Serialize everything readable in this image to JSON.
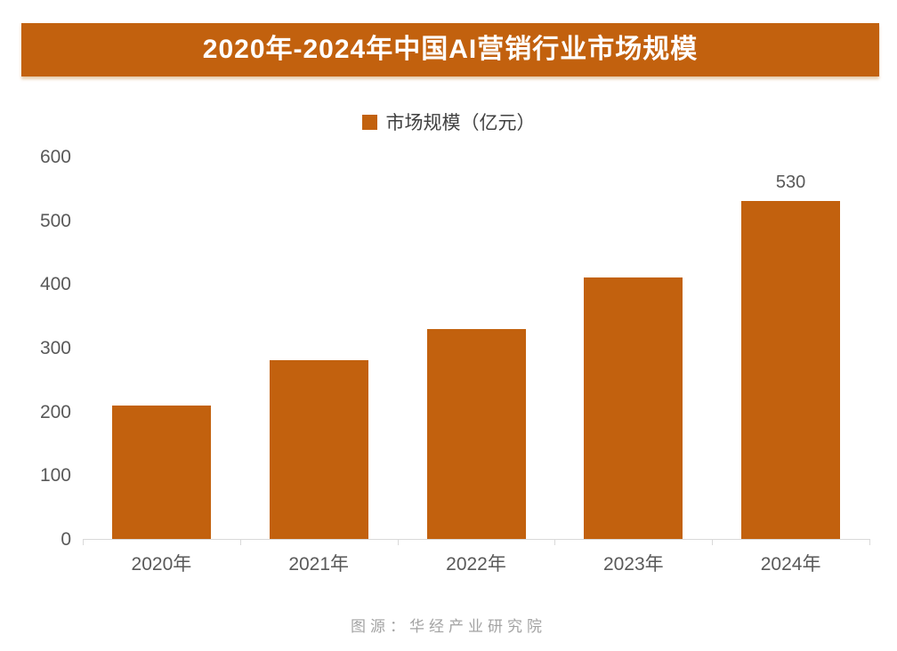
{
  "chart": {
    "title": "2020年-2024年中国AI营销行业市场规模",
    "legend": "市场规模（亿元）"
  },
  "footer": {
    "source": "图源：华经产业研究院"
  },
  "colors": {
    "accent": "#C2610E",
    "banner_text": "#FFFFFF",
    "axis": "#D9D9D9",
    "tick_label": "#595959",
    "footer_text": "#A3A3A3"
  },
  "chart_data": {
    "type": "bar",
    "title": "2020年-2024年中国AI营销行业市场规模",
    "categories": [
      "2020年",
      "2021年",
      "2022年",
      "2023年",
      "2024年"
    ],
    "values": [
      210,
      280,
      330,
      410,
      530
    ],
    "data_labels": [
      "",
      "",
      "",
      "",
      "530"
    ],
    "series_name": "市场规模（亿元）",
    "xlabel": "",
    "ylabel": "",
    "ylim": [
      0,
      600
    ],
    "yticks": [
      0,
      100,
      200,
      300,
      400,
      500,
      600
    ],
    "grid": false,
    "legend_position": "top-center",
    "bar_color": "#C2610E"
  }
}
